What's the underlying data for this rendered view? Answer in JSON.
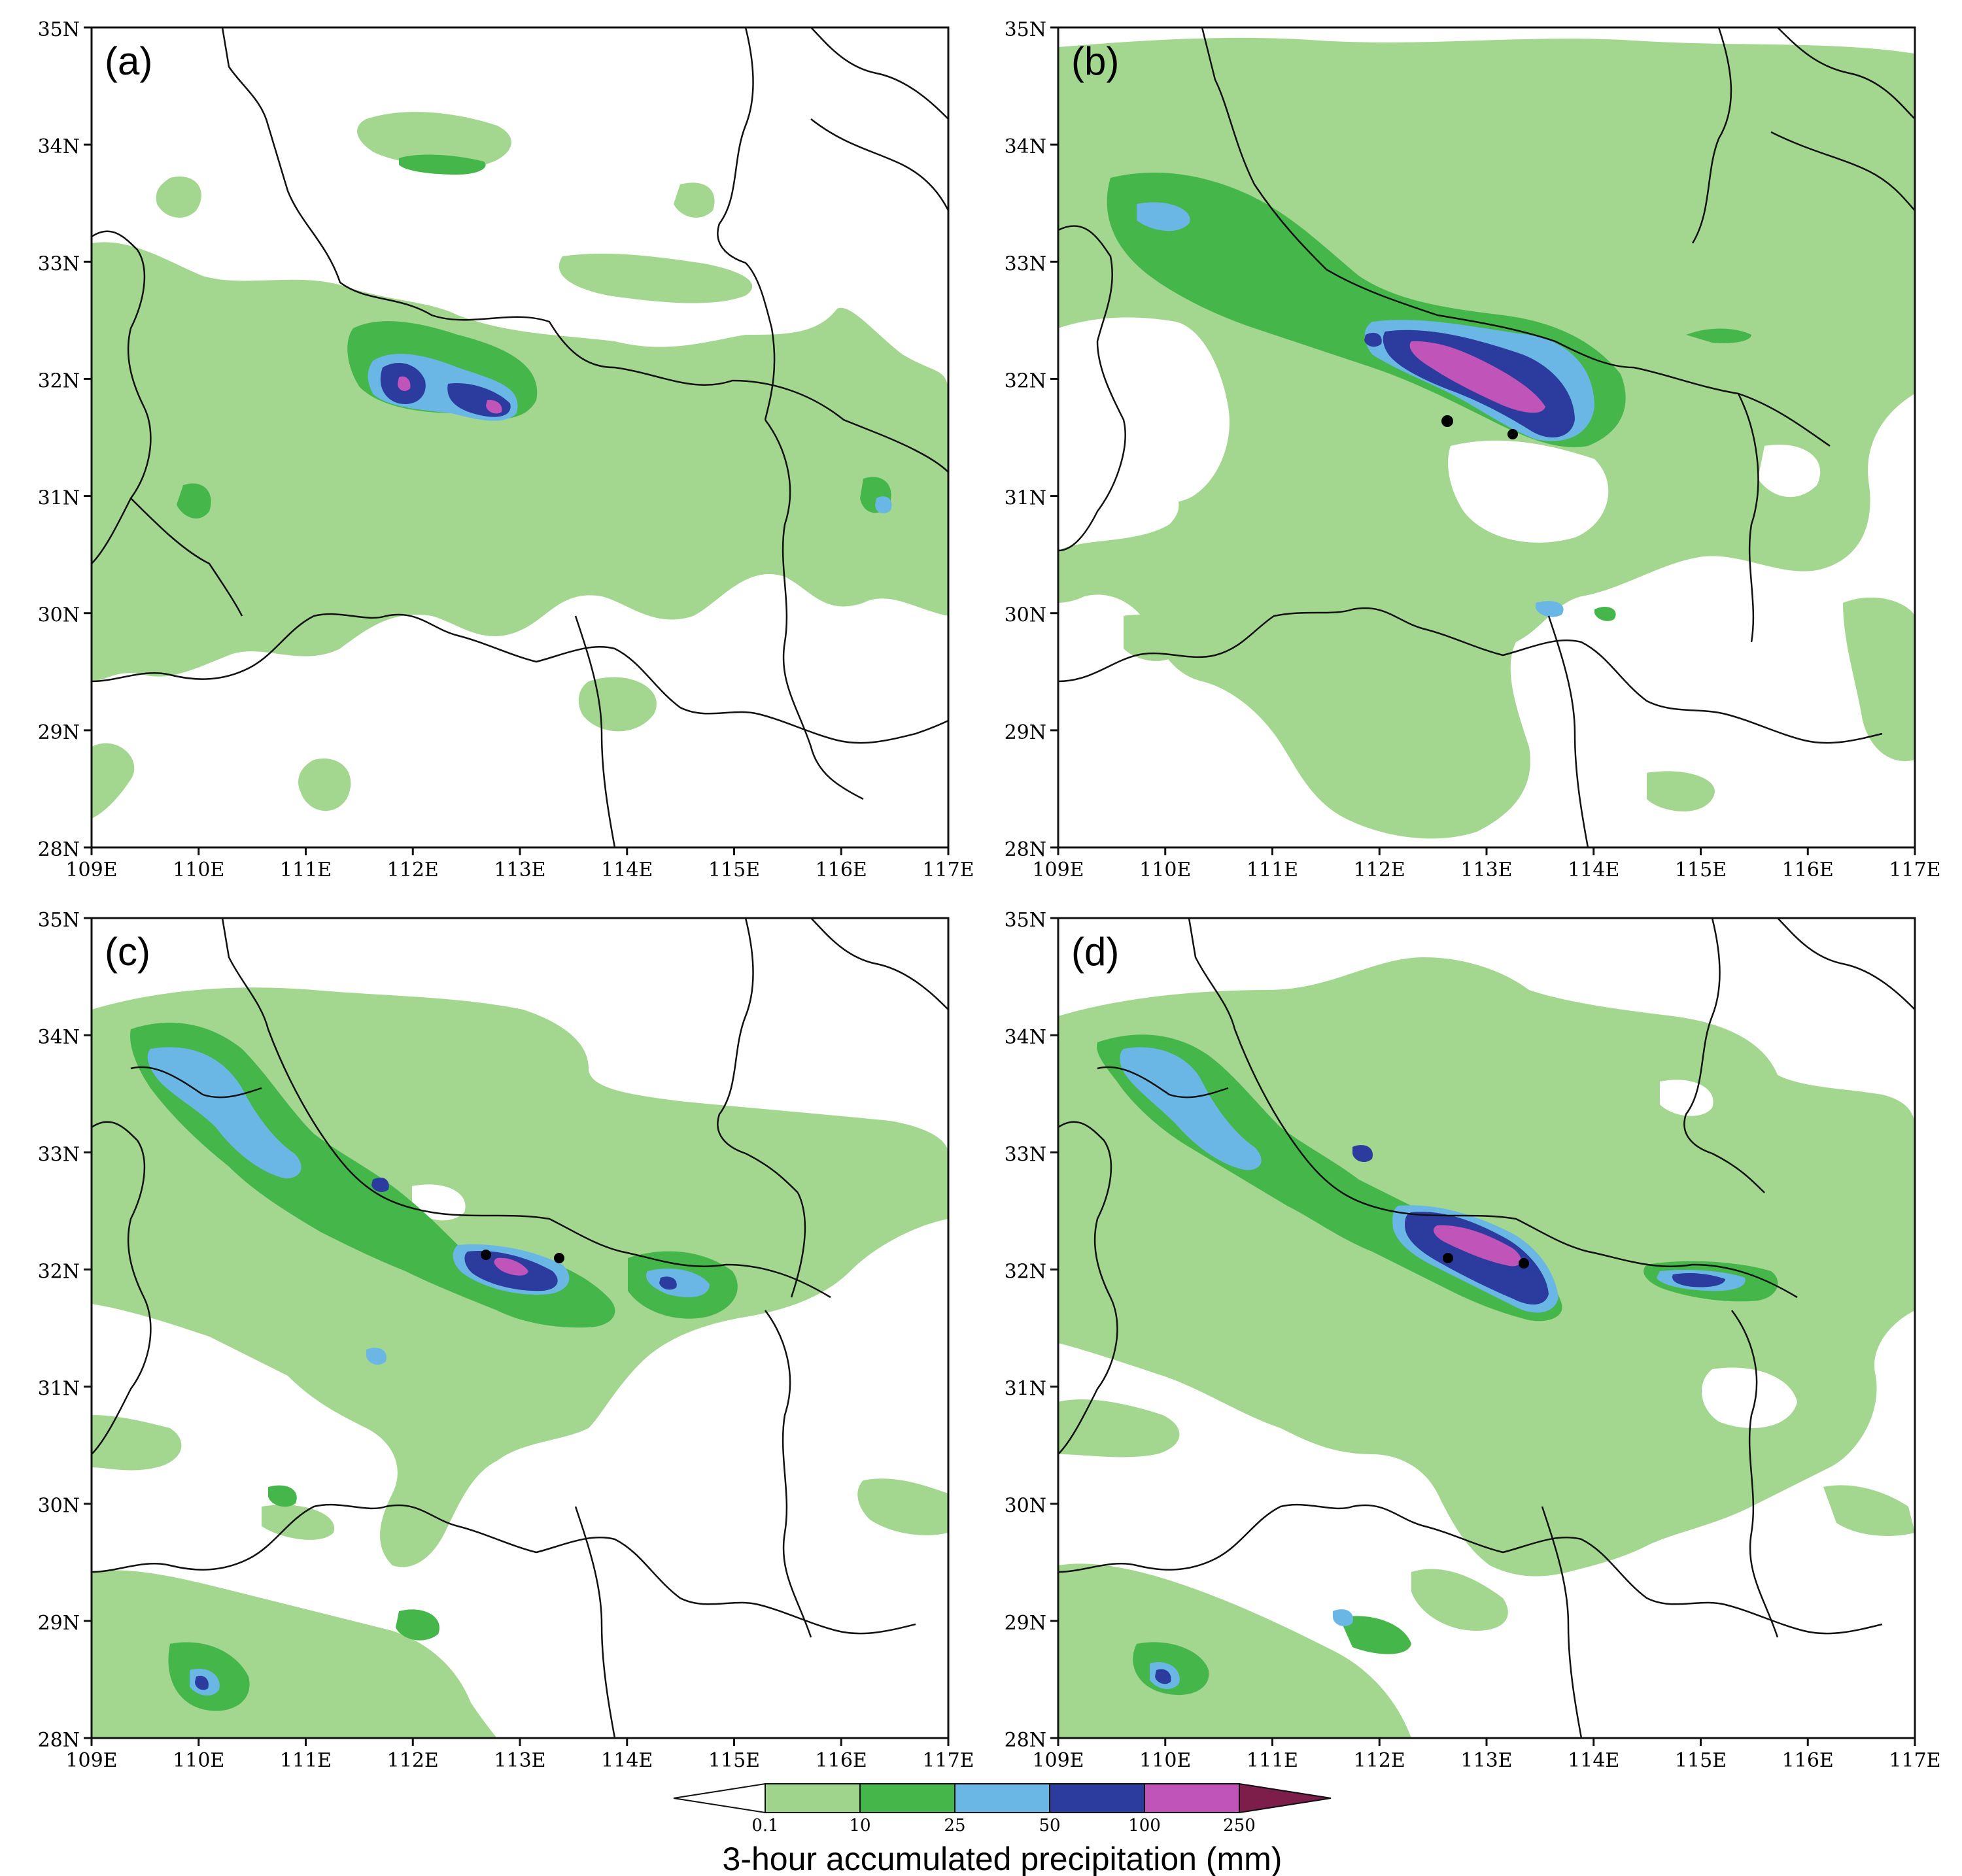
{
  "figure": {
    "colorbar": {
      "title": "3-hour accumulated precipitation (mm)",
      "ticks": [
        "0.1",
        "10",
        "25",
        "50",
        "100",
        "250"
      ],
      "colors": [
        "#ffffff",
        "#9fd48d",
        "#45b649",
        "#6ab7e6",
        "#2b3c9e",
        "#c154b8",
        "#7d1d4a"
      ]
    },
    "panels": [
      {
        "label": "(a)"
      },
      {
        "label": "(b)"
      },
      {
        "label": "(c)"
      },
      {
        "label": "(d)"
      }
    ],
    "axes": {
      "lat_labels": [
        "28N",
        "29N",
        "30N",
        "31N",
        "32N",
        "33N",
        "34N",
        "35N"
      ],
      "lon_labels": [
        "109E",
        "110E",
        "111E",
        "112E",
        "113E",
        "114E",
        "115E",
        "116E",
        "117E"
      ],
      "lat_range": [
        28,
        35
      ],
      "lon_range": [
        109,
        117
      ]
    },
    "rain_colors": {
      "light_green": "#a3d68f",
      "green": "#45b649",
      "light_blue": "#6ab7e6",
      "dark_blue": "#2b3c9e",
      "magenta": "#c154b8",
      "border": "#111111"
    }
  }
}
